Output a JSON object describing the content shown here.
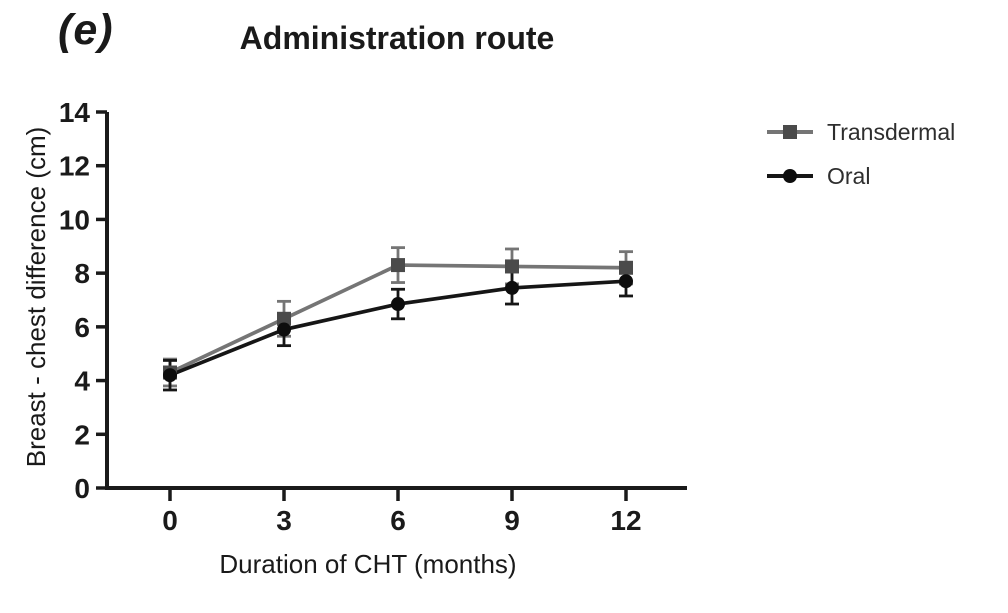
{
  "figure": {
    "panel_label": "(e)"
  },
  "chart_data": {
    "type": "line",
    "title": "Administration route",
    "xlabel": "Duration of CHT (months)",
    "ylabel": "Breast - chest difference (cm)",
    "x": [
      0,
      3,
      6,
      9,
      12
    ],
    "xticks": [
      0,
      3,
      6,
      9,
      12
    ],
    "yticks": [
      0,
      2,
      4,
      6,
      8,
      10,
      12,
      14
    ],
    "ylim": [
      0,
      14
    ],
    "grid": false,
    "legend_position": "right",
    "axis_color": "#1a1a1a",
    "series": [
      {
        "name": "Transdermal",
        "marker": "square",
        "line_color": "#757575",
        "marker_color": "#4a4a4a",
        "values": [
          4.3,
          6.3,
          8.3,
          8.25,
          8.2
        ],
        "errors": [
          0.5,
          0.65,
          0.65,
          0.65,
          0.6
        ]
      },
      {
        "name": "Oral",
        "marker": "circle",
        "line_color": "#161616",
        "marker_color": "#0d0d0d",
        "values": [
          4.2,
          5.9,
          6.85,
          7.45,
          7.7
        ],
        "errors": [
          0.55,
          0.6,
          0.55,
          0.6,
          0.55
        ]
      }
    ]
  }
}
